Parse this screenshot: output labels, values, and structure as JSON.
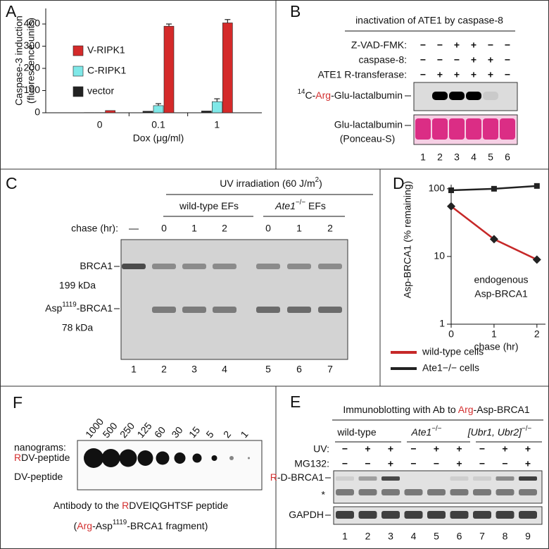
{
  "chart_data": [
    {
      "label": "A",
      "type": "bar",
      "ylabel": [
        "Caspase-3 induction",
        "(fluorescence units)"
      ],
      "xlabel": "Dox (μg/ml)",
      "categories": [
        "0",
        "0.1",
        "1"
      ],
      "series": [
        {
          "name": "V-RIPK1",
          "color": "#d42a2a",
          "values": [
            10,
            390,
            405
          ],
          "errors": [
            null,
            10,
            15
          ]
        },
        {
          "name": "C-RIPK1",
          "color": "#7fe8e8",
          "values": [
            1,
            32,
            50
          ],
          "errors": [
            null,
            9,
            13
          ]
        },
        {
          "name": "vector",
          "color": "#222222",
          "values": [
            1,
            7,
            8
          ]
        }
      ],
      "ylim": [
        0,
        470
      ],
      "yticks": [
        0,
        100,
        200,
        300,
        400
      ]
    },
    {
      "label": "D",
      "type": "line",
      "log_y": true,
      "ylabel": "Asp-BRCA1 (% remaining)",
      "xlabel": "chase (hr)",
      "x": [
        0,
        1,
        2
      ],
      "series": [
        {
          "name": "wild-type cells",
          "color": "#c62828",
          "marker": "diamond",
          "values": [
            55,
            18,
            9
          ]
        },
        {
          "name": "Ate1−/− cells",
          "color": "#222222",
          "marker": "square",
          "values": [
            95,
            100,
            110
          ]
        }
      ],
      "xlim": [
        0,
        2.2
      ],
      "xticks": [
        0,
        1,
        2
      ],
      "ylim": [
        1,
        115
      ],
      "yticks": [
        1,
        10,
        100
      ],
      "annotation": [
        "endogenous",
        "Asp-BRCA1"
      ]
    }
  ],
  "panels": {
    "B": {
      "label": "B",
      "title": "inactivation of ATE1 by caspase-8",
      "rows": [
        {
          "name": "Z-VAD-FMK:",
          "signs": [
            "−",
            "−",
            "+",
            "+",
            "−",
            "−"
          ]
        },
        {
          "name": "caspase-8:",
          "signs": [
            "−",
            "−",
            "−",
            "+",
            "+",
            "−"
          ]
        },
        {
          "name": "ATE1 R-transferase:",
          "signs": [
            "−",
            "+",
            "+",
            "+",
            "+",
            "−"
          ]
        }
      ],
      "blots": [
        [
          "14",
          "C-",
          "Arg",
          "-Glu-lactalbumin"
        ],
        [
          "Glu-lactalbumin",
          "(Ponceau-S)"
        ]
      ],
      "lanes": [
        "1",
        "2",
        "3",
        "4",
        "5",
        "6"
      ]
    },
    "C": {
      "label": "C",
      "treatment": [
        "UV irradiation (60 J/m",
        "2",
        ")"
      ],
      "groups": [
        [
          "wild-type EFs"
        ],
        [
          "Ate1",
          "−/−",
          " EFs"
        ]
      ],
      "chase_label": "chase (hr):",
      "chase": [
        "—",
        "0",
        "1",
        "2",
        "0",
        "1",
        "2"
      ],
      "bands": [
        {
          "name": [
            "BRCA1"
          ],
          "size": "199 kDa"
        },
        {
          "name": [
            "Asp",
            "1119",
            "-BRCA1"
          ],
          "size": "78 kDa"
        }
      ],
      "lanes": [
        "1",
        "2",
        "3",
        "4",
        "5",
        "6",
        "7"
      ]
    },
    "E": {
      "label": "E",
      "title": [
        "Immunoblotting with Ab to ",
        "Arg",
        "-Asp-BRCA1"
      ],
      "groups": [
        [
          "wild-type"
        ],
        [
          "Ate1",
          "−/−"
        ],
        [
          "[Ubr1, Ubr2]",
          "−/−"
        ]
      ],
      "rows": [
        {
          "name": "UV:",
          "signs": [
            "−",
            "+",
            "+",
            "−",
            "+",
            "+",
            "−",
            "+",
            "+"
          ]
        },
        {
          "name": "MG132:",
          "signs": [
            "−",
            "−",
            "+",
            "−",
            "−",
            "+",
            "−",
            "−",
            "+"
          ]
        }
      ],
      "blots": [
        {
          "label": [
            "R",
            "-D-BRCA1"
          ],
          "marker": "*"
        },
        {
          "label": [
            "GAPDH"
          ]
        }
      ],
      "lanes": [
        "1",
        "2",
        "3",
        "4",
        "5",
        "6",
        "7",
        "8",
        "9"
      ]
    },
    "F": {
      "label": "F",
      "amount_label": "nanograms:",
      "amounts": [
        1000,
        500,
        250,
        125,
        60,
        30,
        15,
        5,
        2,
        1
      ],
      "rows": [
        [
          "R",
          "DV-peptide"
        ],
        [
          "DV-peptide"
        ]
      ],
      "caption": [
        [
          "Antibody to the ",
          "R",
          "DVEIQGHTSF peptide"
        ],
        [
          "(",
          "Arg",
          "-Asp",
          "1119",
          "-BRCA1 fragment)"
        ]
      ]
    }
  }
}
